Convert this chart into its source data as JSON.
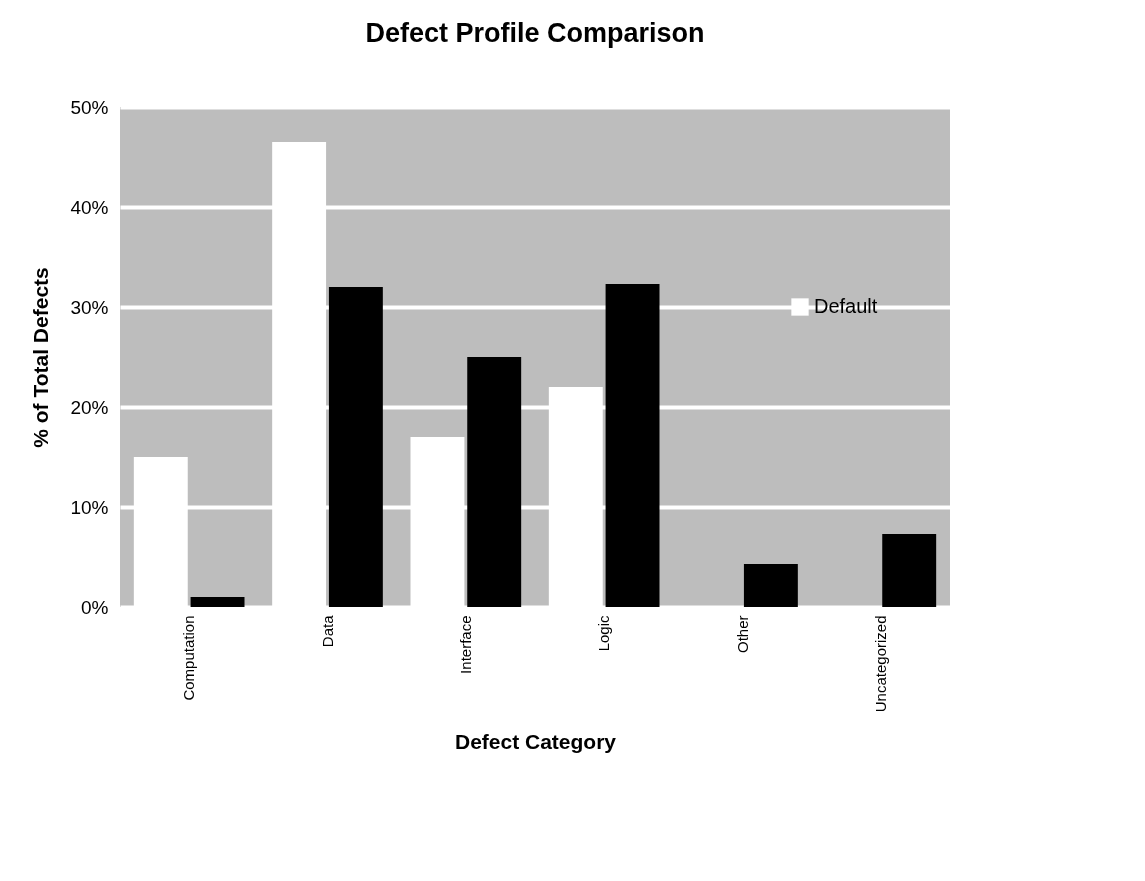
{
  "chart_data": {
    "type": "bar",
    "title": "Defect Profile Comparison",
    "xlabel": "Defect Category",
    "ylabel": "% of Total Defects",
    "categories": [
      "Computation",
      "Data",
      "Interface",
      "Logic",
      "Other",
      "Uncategorized"
    ],
    "series": [
      {
        "name": "Default",
        "color": "#ffffff",
        "values": [
          15,
          46.5,
          17,
          22,
          0,
          0
        ]
      },
      {
        "color": "#000000",
        "values": [
          1,
          32,
          25,
          32.3,
          4.3,
          7.3
        ]
      }
    ],
    "ylim": [
      0,
      50
    ],
    "yticks": [
      {
        "value": 0,
        "label": "0%"
      },
      {
        "value": 10,
        "label": "10%"
      },
      {
        "value": 20,
        "label": "20%"
      },
      {
        "value": 30,
        "label": "30%"
      },
      {
        "value": 40,
        "label": "40%"
      },
      {
        "value": 50,
        "label": "50%"
      }
    ],
    "grid": "y",
    "legend": "right"
  }
}
